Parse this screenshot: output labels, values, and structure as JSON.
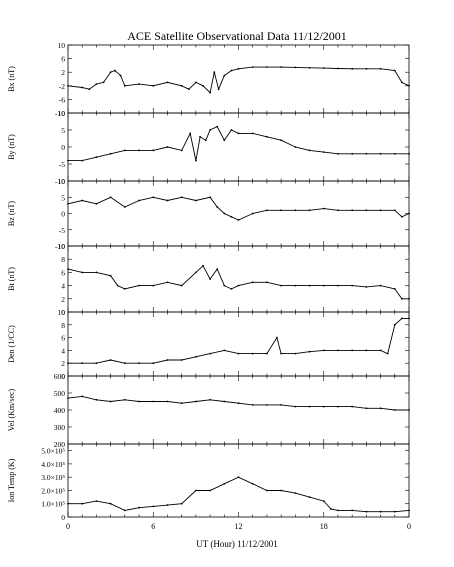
{
  "chart_data": {
    "type": "line",
    "title": "ACE Satellite Observational Data   11/12/2001",
    "xlabel": "UT (Hour)  11/12/2001",
    "x_ticks": [
      "0",
      "6",
      "12",
      "18",
      "0"
    ],
    "xlim": [
      0,
      24
    ],
    "panels": [
      {
        "ylabel": "Bx (nT)",
        "ylim": [
          -10,
          10
        ],
        "yticks": [
          {
            "v": 10,
            "l": "10"
          },
          {
            "v": 6,
            "l": "6"
          },
          {
            "v": 2,
            "l": "2"
          },
          {
            "v": -2,
            "l": "-2"
          },
          {
            "v": -6,
            "l": "-6"
          },
          {
            "v": -10,
            "l": "-10"
          }
        ],
        "x": [
          0,
          1,
          1.5,
          2,
          2.5,
          3,
          3.3,
          3.7,
          4,
          5,
          6,
          7,
          8,
          8.5,
          9,
          9.5,
          10,
          10.3,
          10.6,
          11,
          11.5,
          12,
          13,
          14,
          15,
          16,
          17,
          18,
          19,
          20,
          21,
          22,
          23,
          23.5,
          24
        ],
        "y": [
          -2,
          -2.5,
          -3,
          -1.5,
          -1,
          2,
          2.5,
          1,
          -2,
          -1.5,
          -2,
          -1,
          -2,
          -3,
          -1,
          -2,
          -4,
          2,
          -3,
          1,
          2.5,
          3,
          3.5,
          3.5,
          3.5,
          3.4,
          3.3,
          3.2,
          3.1,
          3,
          3,
          3,
          2.5,
          -1,
          -2
        ]
      },
      {
        "ylabel": "By (nT)",
        "ylim": [
          -10,
          10
        ],
        "yticks": [
          {
            "v": 10,
            "l": "10"
          },
          {
            "v": 5,
            "l": "5"
          },
          {
            "v": 0,
            "l": "0"
          },
          {
            "v": -5,
            "l": "-5"
          },
          {
            "v": -10,
            "l": "-10"
          }
        ],
        "x": [
          0,
          1,
          2,
          3,
          4,
          5,
          6,
          7,
          8,
          8.6,
          9,
          9.3,
          9.7,
          10,
          10.5,
          11,
          11.5,
          12,
          13,
          14,
          15,
          16,
          17,
          18,
          19,
          20,
          21,
          22,
          23,
          24
        ],
        "y": [
          -4,
          -4,
          -3,
          -2,
          -1,
          -1,
          -1,
          0,
          -1,
          4,
          -4,
          3,
          2,
          5,
          6,
          2,
          5,
          4,
          4,
          3,
          2,
          0,
          -1,
          -1.5,
          -2,
          -2,
          -2,
          -2,
          -2,
          -2
        ]
      },
      {
        "ylabel": "Bz (nT)",
        "ylim": [
          -10,
          10
        ],
        "yticks": [
          {
            "v": 10,
            "l": "10"
          },
          {
            "v": 5,
            "l": "5"
          },
          {
            "v": 0,
            "l": "0"
          },
          {
            "v": -5,
            "l": "-5"
          },
          {
            "v": -10,
            "l": "-10"
          }
        ],
        "x": [
          0,
          1,
          2,
          3,
          4,
          5,
          6,
          7,
          8,
          9,
          10,
          10.5,
          11,
          11.5,
          12,
          13,
          14,
          15,
          16,
          17,
          18,
          19,
          20,
          21,
          22,
          23,
          23.5,
          24
        ],
        "y": [
          3,
          4,
          3,
          5,
          2,
          4,
          5,
          4,
          5,
          4,
          5,
          2,
          0,
          -1,
          -2,
          0,
          1,
          1,
          1,
          1,
          1.5,
          1,
          1,
          1,
          1,
          1,
          -1,
          0
        ]
      },
      {
        "ylabel": "Bt (nT)",
        "ylim": [
          0,
          10
        ],
        "yticks": [
          {
            "v": 10,
            "l": "10"
          },
          {
            "v": 8,
            "l": "8"
          },
          {
            "v": 6,
            "l": "6"
          },
          {
            "v": 4,
            "l": "4"
          },
          {
            "v": 2,
            "l": "2"
          },
          {
            "v": 0,
            "l": "0"
          }
        ],
        "x": [
          0,
          1,
          2,
          3,
          3.5,
          4,
          5,
          6,
          7,
          8,
          9,
          9.5,
          10,
          10.5,
          11,
          11.5,
          12,
          13,
          14,
          15,
          16,
          17,
          18,
          19,
          20,
          21,
          22,
          23,
          23.5,
          24
        ],
        "y": [
          6.5,
          6,
          6,
          5.5,
          4,
          3.5,
          4,
          4,
          4.5,
          4,
          6,
          7,
          5,
          6.5,
          4,
          3.5,
          4,
          4.5,
          4.5,
          4,
          4,
          4,
          4,
          4,
          4,
          3.8,
          4,
          3.5,
          2,
          2
        ]
      },
      {
        "ylabel": "Den (1/CC)",
        "ylim": [
          0,
          10
        ],
        "yticks": [
          {
            "v": 10,
            "l": "10"
          },
          {
            "v": 8,
            "l": "8"
          },
          {
            "v": 6,
            "l": "6"
          },
          {
            "v": 4,
            "l": "4"
          },
          {
            "v": 2,
            "l": "2"
          },
          {
            "v": 0,
            "l": "0"
          }
        ],
        "x": [
          0,
          1,
          2,
          3,
          4,
          5,
          6,
          7,
          8,
          9,
          10,
          11,
          12,
          13,
          14,
          14.7,
          15,
          16,
          17,
          18,
          19,
          20,
          21,
          22,
          22.5,
          23,
          23.5,
          24
        ],
        "y": [
          2,
          2,
          2,
          2.5,
          2,
          2,
          2,
          2.5,
          2.5,
          3,
          3.5,
          4,
          3.5,
          3.5,
          3.5,
          6,
          3.5,
          3.5,
          3.8,
          4,
          4,
          4,
          4,
          4,
          3.5,
          8,
          9,
          9
        ]
      },
      {
        "ylabel": "Vel (Km/sec)",
        "ylim": [
          200,
          600
        ],
        "yticks": [
          {
            "v": 600,
            "l": "600"
          },
          {
            "v": 500,
            "l": "500"
          },
          {
            "v": 400,
            "l": "400"
          },
          {
            "v": 300,
            "l": "300"
          },
          {
            "v": 200,
            "l": "200"
          }
        ],
        "x": [
          0,
          1,
          2,
          3,
          4,
          5,
          6,
          7,
          8,
          9,
          10,
          11,
          12,
          13,
          14,
          15,
          16,
          17,
          18,
          19,
          20,
          21,
          22,
          23,
          24
        ],
        "y": [
          470,
          480,
          460,
          450,
          460,
          450,
          450,
          450,
          440,
          450,
          460,
          450,
          440,
          430,
          430,
          430,
          420,
          420,
          420,
          420,
          420,
          410,
          410,
          400,
          400
        ]
      },
      {
        "ylabel": "Ion Temp (K)",
        "ylim": [
          0,
          550000
        ],
        "yticks": [
          {
            "v": 500000,
            "l": "5.0×10⁵"
          },
          {
            "v": 400000,
            "l": "4.0×10⁵"
          },
          {
            "v": 300000,
            "l": "3.0×10⁵"
          },
          {
            "v": 200000,
            "l": "2.0×10⁵"
          },
          {
            "v": 100000,
            "l": "1.0×10⁵"
          },
          {
            "v": 0,
            "l": "0"
          }
        ],
        "x": [
          0,
          1,
          2,
          3,
          4,
          5,
          6,
          7,
          8,
          9,
          10,
          11,
          12,
          13,
          14,
          15,
          16,
          17,
          18,
          18.5,
          19,
          20,
          21,
          22,
          23,
          24
        ],
        "y": [
          100000,
          100000,
          120000,
          100000,
          50000,
          70000,
          80000,
          90000,
          100000,
          200000,
          200000,
          250000,
          300000,
          250000,
          200000,
          200000,
          180000,
          150000,
          120000,
          60000,
          50000,
          50000,
          40000,
          40000,
          40000,
          50000
        ]
      }
    ]
  }
}
